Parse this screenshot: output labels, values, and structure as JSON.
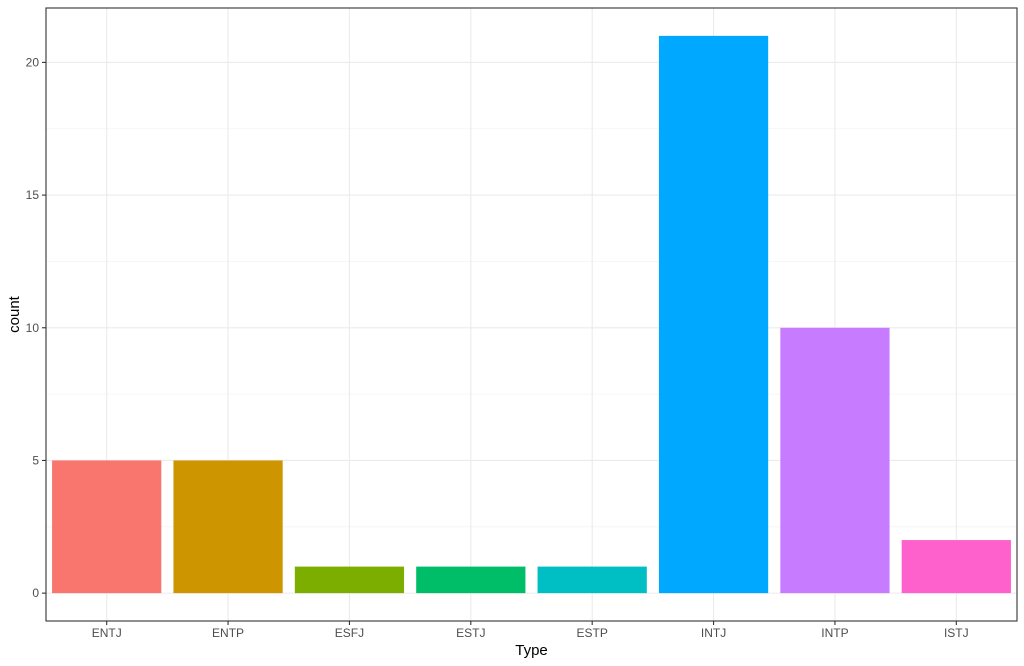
{
  "chart_data": {
    "type": "bar",
    "xlabel": "Type",
    "ylabel": "count",
    "categories": [
      "ENTJ",
      "ENTP",
      "ESFJ",
      "ESTJ",
      "ESTP",
      "INTJ",
      "INTP",
      "ISTJ"
    ],
    "values": [
      5,
      5,
      1,
      1,
      1,
      21,
      10,
      2
    ],
    "colors": [
      "#F8766D",
      "#CD9600",
      "#7CAE00",
      "#00BE67",
      "#00BFC4",
      "#00A9FF",
      "#C77CFF",
      "#FF61CC"
    ],
    "y_ticks": [
      0,
      5,
      10,
      15,
      20
    ],
    "ylim": [
      -1.05,
      22.05
    ],
    "grid": true,
    "legend": "none",
    "theme": {
      "panel_border": "#333333",
      "grid_major": "#ebebeb",
      "grid_minor": "#f4f4f4",
      "tick_color": "#333333"
    }
  }
}
